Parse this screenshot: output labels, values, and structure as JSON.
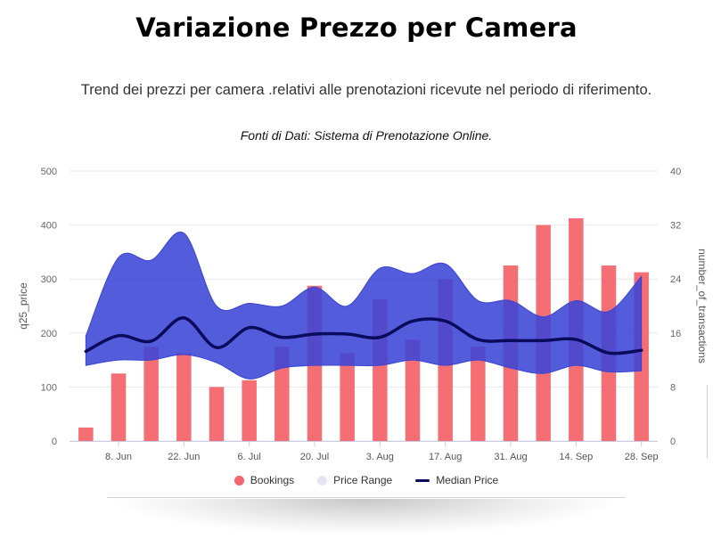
{
  "header": {
    "title": "Variazione Prezzo per Camera",
    "subtitle": "Trend dei prezzi per camera .relativi alle prenotazioni ricevute nel periodo di riferimento.",
    "source": "Fonti di Dati: Sistema di Prenotazione Online."
  },
  "legend": {
    "bookings": "Bookings",
    "price_range": "Price Range",
    "median_price": "Median Price"
  },
  "colors": {
    "bookings": "#f4666d",
    "price_range": "#3b46d6",
    "price_range_legend": "#e4e6f5",
    "median_price": "#0b0b5c",
    "grid": "#e6e6ee"
  },
  "chart_data": {
    "type": "bar",
    "x_tick_labels": [
      "8. Jun",
      "22. Jun",
      "6. Jul",
      "20. Jul",
      "3. Aug",
      "17. Aug",
      "31. Aug",
      "14. Sep",
      "28. Sep"
    ],
    "left_axis": {
      "title": "q25_price",
      "ticks": [
        0,
        100,
        200,
        300,
        400,
        500
      ],
      "range": [
        0,
        500
      ]
    },
    "right_axis": {
      "title": "number_of_transactions",
      "ticks": [
        0,
        8,
        16,
        24,
        32,
        40
      ],
      "range": [
        0,
        40
      ]
    },
    "grid": true,
    "legend_position": "bottom-center",
    "series": [
      {
        "name": "Bookings",
        "type": "bar",
        "axis": "right",
        "values": [
          2,
          10,
          14,
          13,
          8,
          9,
          14,
          23,
          13,
          21,
          15,
          24,
          14,
          26,
          32,
          33,
          26,
          25
        ]
      },
      {
        "name": "Price Range",
        "type": "arearange",
        "axis": "left",
        "low": [
          140,
          150,
          150,
          160,
          145,
          115,
          135,
          140,
          140,
          140,
          150,
          140,
          150,
          135,
          125,
          140,
          128,
          130
        ],
        "high": [
          195,
          340,
          335,
          385,
          250,
          255,
          250,
          285,
          250,
          320,
          310,
          328,
          260,
          260,
          230,
          260,
          240,
          305
        ]
      },
      {
        "name": "Median Price",
        "type": "line",
        "axis": "left",
        "values": [
          166,
          195,
          185,
          228,
          173,
          210,
          192,
          198,
          198,
          192,
          222,
          222,
          188,
          186,
          186,
          188,
          163,
          168
        ]
      }
    ]
  }
}
